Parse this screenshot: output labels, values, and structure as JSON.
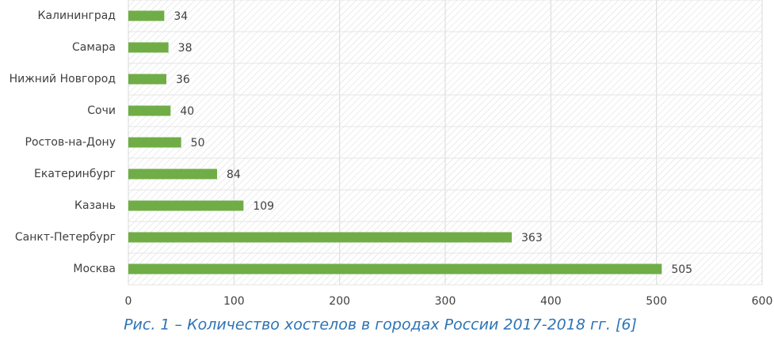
{
  "chart_data": {
    "type": "bar",
    "orientation": "horizontal",
    "caption": "Рис. 1 – Количество хостелов в городах России 2017-2018 гг. [6]",
    "categories": [
      "Калининград",
      "Самара",
      "Нижний Новгород",
      "Сочи",
      "Ростов-на-Дону",
      "Екатеринбург",
      "Казань",
      "Санкт-Петербург",
      "Москва"
    ],
    "values": [
      34,
      38,
      36,
      40,
      50,
      84,
      109,
      363,
      505
    ],
    "color": "#70ad47",
    "xlim": [
      0,
      600
    ],
    "xticks": [
      0,
      100,
      200,
      300,
      400,
      500,
      600
    ],
    "grid": true
  }
}
